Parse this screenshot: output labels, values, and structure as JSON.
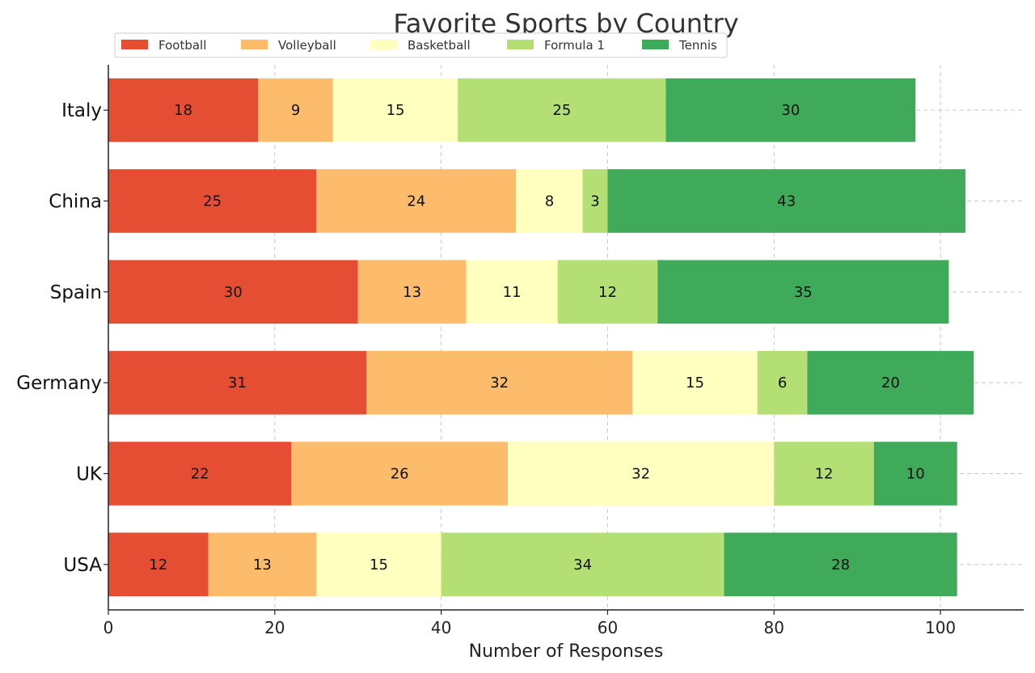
{
  "chart_data": {
    "type": "bar",
    "orientation": "horizontal",
    "stacked": true,
    "title": "Favorite Sports by Country",
    "xlabel": "Number of Responses",
    "ylabel": "",
    "xlim": [
      0,
      110
    ],
    "xticks": [
      0,
      20,
      40,
      60,
      80,
      100
    ],
    "grid": true,
    "legend_position": "top-left",
    "categories": [
      "USA",
      "UK",
      "Germany",
      "Spain",
      "China",
      "Italy"
    ],
    "series": [
      {
        "name": "Football",
        "color": "#e64e34",
        "values": [
          12,
          22,
          31,
          30,
          25,
          18
        ]
      },
      {
        "name": "Volleyball",
        "color": "#fdbb6c",
        "values": [
          13,
          26,
          32,
          13,
          24,
          9
        ]
      },
      {
        "name": "Basketball",
        "color": "#ffffbf",
        "values": [
          15,
          32,
          15,
          11,
          8,
          15
        ]
      },
      {
        "name": "Formula 1",
        "color": "#b3df74",
        "values": [
          34,
          12,
          6,
          12,
          3,
          25
        ]
      },
      {
        "name": "Tennis",
        "color": "#3faa59",
        "values": [
          28,
          10,
          20,
          35,
          43,
          30
        ]
      }
    ]
  }
}
